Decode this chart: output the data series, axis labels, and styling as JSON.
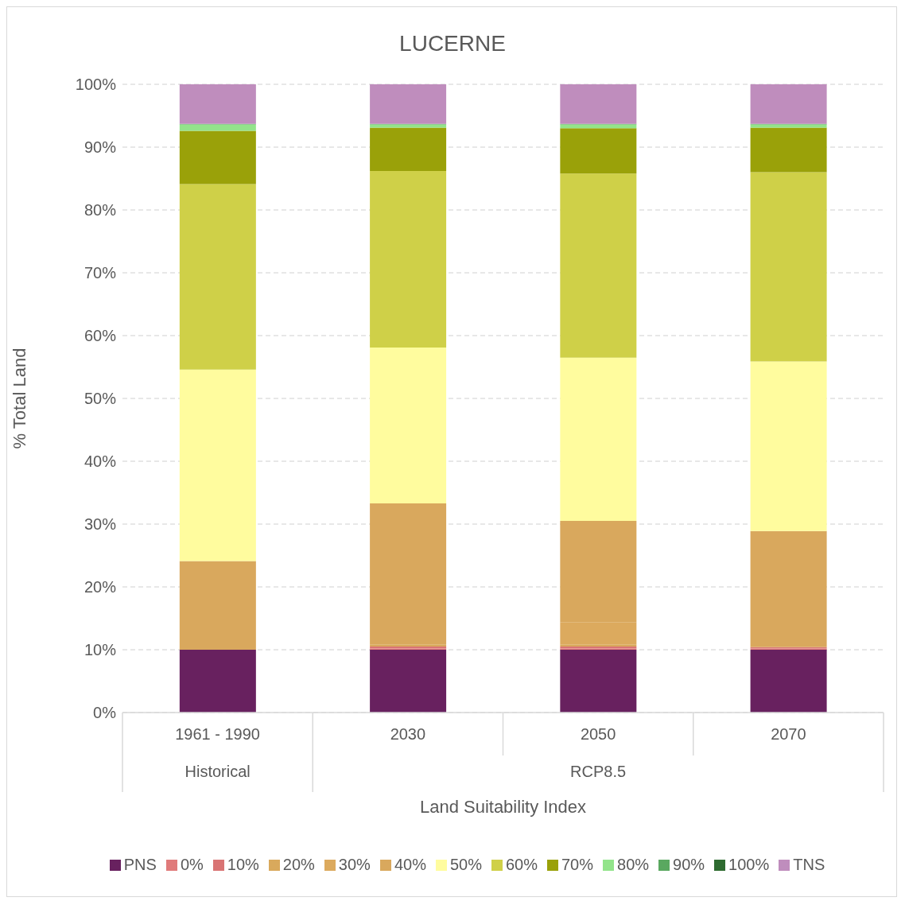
{
  "chart_data": {
    "type": "bar",
    "stacked": true,
    "title": "LUCERNE",
    "xlabel": "Land Suitability Index",
    "ylabel": "% Total Land",
    "categories": [
      "1961 - 1990",
      "2030",
      "2050",
      "2070"
    ],
    "annotations": [
      "Historical",
      "RCP8.5"
    ],
    "series": [
      {
        "name": "PNS",
        "color": "#68215f",
        "values": [
          10,
          10,
          10,
          10
        ]
      },
      {
        "name": "0%",
        "color": "#e07b7b",
        "values": [
          0,
          0.2,
          0.2,
          0.2
        ]
      },
      {
        "name": "10%",
        "color": "#d97474",
        "values": [
          0,
          0.3,
          0.3,
          0.2
        ]
      },
      {
        "name": "20%",
        "color": "#d9a95c",
        "values": [
          0,
          0.3,
          0.3,
          0
        ]
      },
      {
        "name": "30%",
        "color": "#dcaa5e",
        "values": [
          0,
          0,
          3.6,
          0
        ]
      },
      {
        "name": "40%",
        "color": "#d9a85d",
        "values": [
          14.1,
          22.5,
          16.1,
          18.5
        ]
      },
      {
        "name": "50%",
        "color": "#fffc9e",
        "values": [
          30.5,
          24.8,
          26.0,
          27.0
        ]
      },
      {
        "name": "60%",
        "color": "#cfd048",
        "values": [
          29.5,
          28.1,
          29.3,
          30.1
        ]
      },
      {
        "name": "70%",
        "color": "#9aa109",
        "values": [
          8.5,
          6.9,
          7.2,
          7.1
        ]
      },
      {
        "name": "80%",
        "color": "#93e48b",
        "values": [
          1.0,
          0.5,
          0.6,
          0.5
        ]
      },
      {
        "name": "90%",
        "color": "#5aa860",
        "values": [
          0.1,
          0.1,
          0.1,
          0.1
        ]
      },
      {
        "name": "100%",
        "color": "#2e6b30",
        "values": [
          0,
          0,
          0,
          0
        ]
      },
      {
        "name": "TNS",
        "color": "#bf8dbd",
        "values": [
          6.3,
          6.3,
          6.3,
          6.3
        ]
      }
    ],
    "ylim": [
      0,
      100
    ],
    "yticks": [
      {
        "value": 0,
        "label": "0%"
      },
      {
        "value": 10,
        "label": "10%"
      },
      {
        "value": 20,
        "label": "20%"
      },
      {
        "value": 30,
        "label": "30%"
      },
      {
        "value": 40,
        "label": "40%"
      },
      {
        "value": 50,
        "label": "50%"
      },
      {
        "value": 60,
        "label": "60%"
      },
      {
        "value": 70,
        "label": "70%"
      },
      {
        "value": 80,
        "label": "80%"
      },
      {
        "value": 90,
        "label": "90%"
      },
      {
        "value": 100,
        "label": "100%"
      }
    ],
    "grid": "y",
    "legend": "bottom"
  }
}
